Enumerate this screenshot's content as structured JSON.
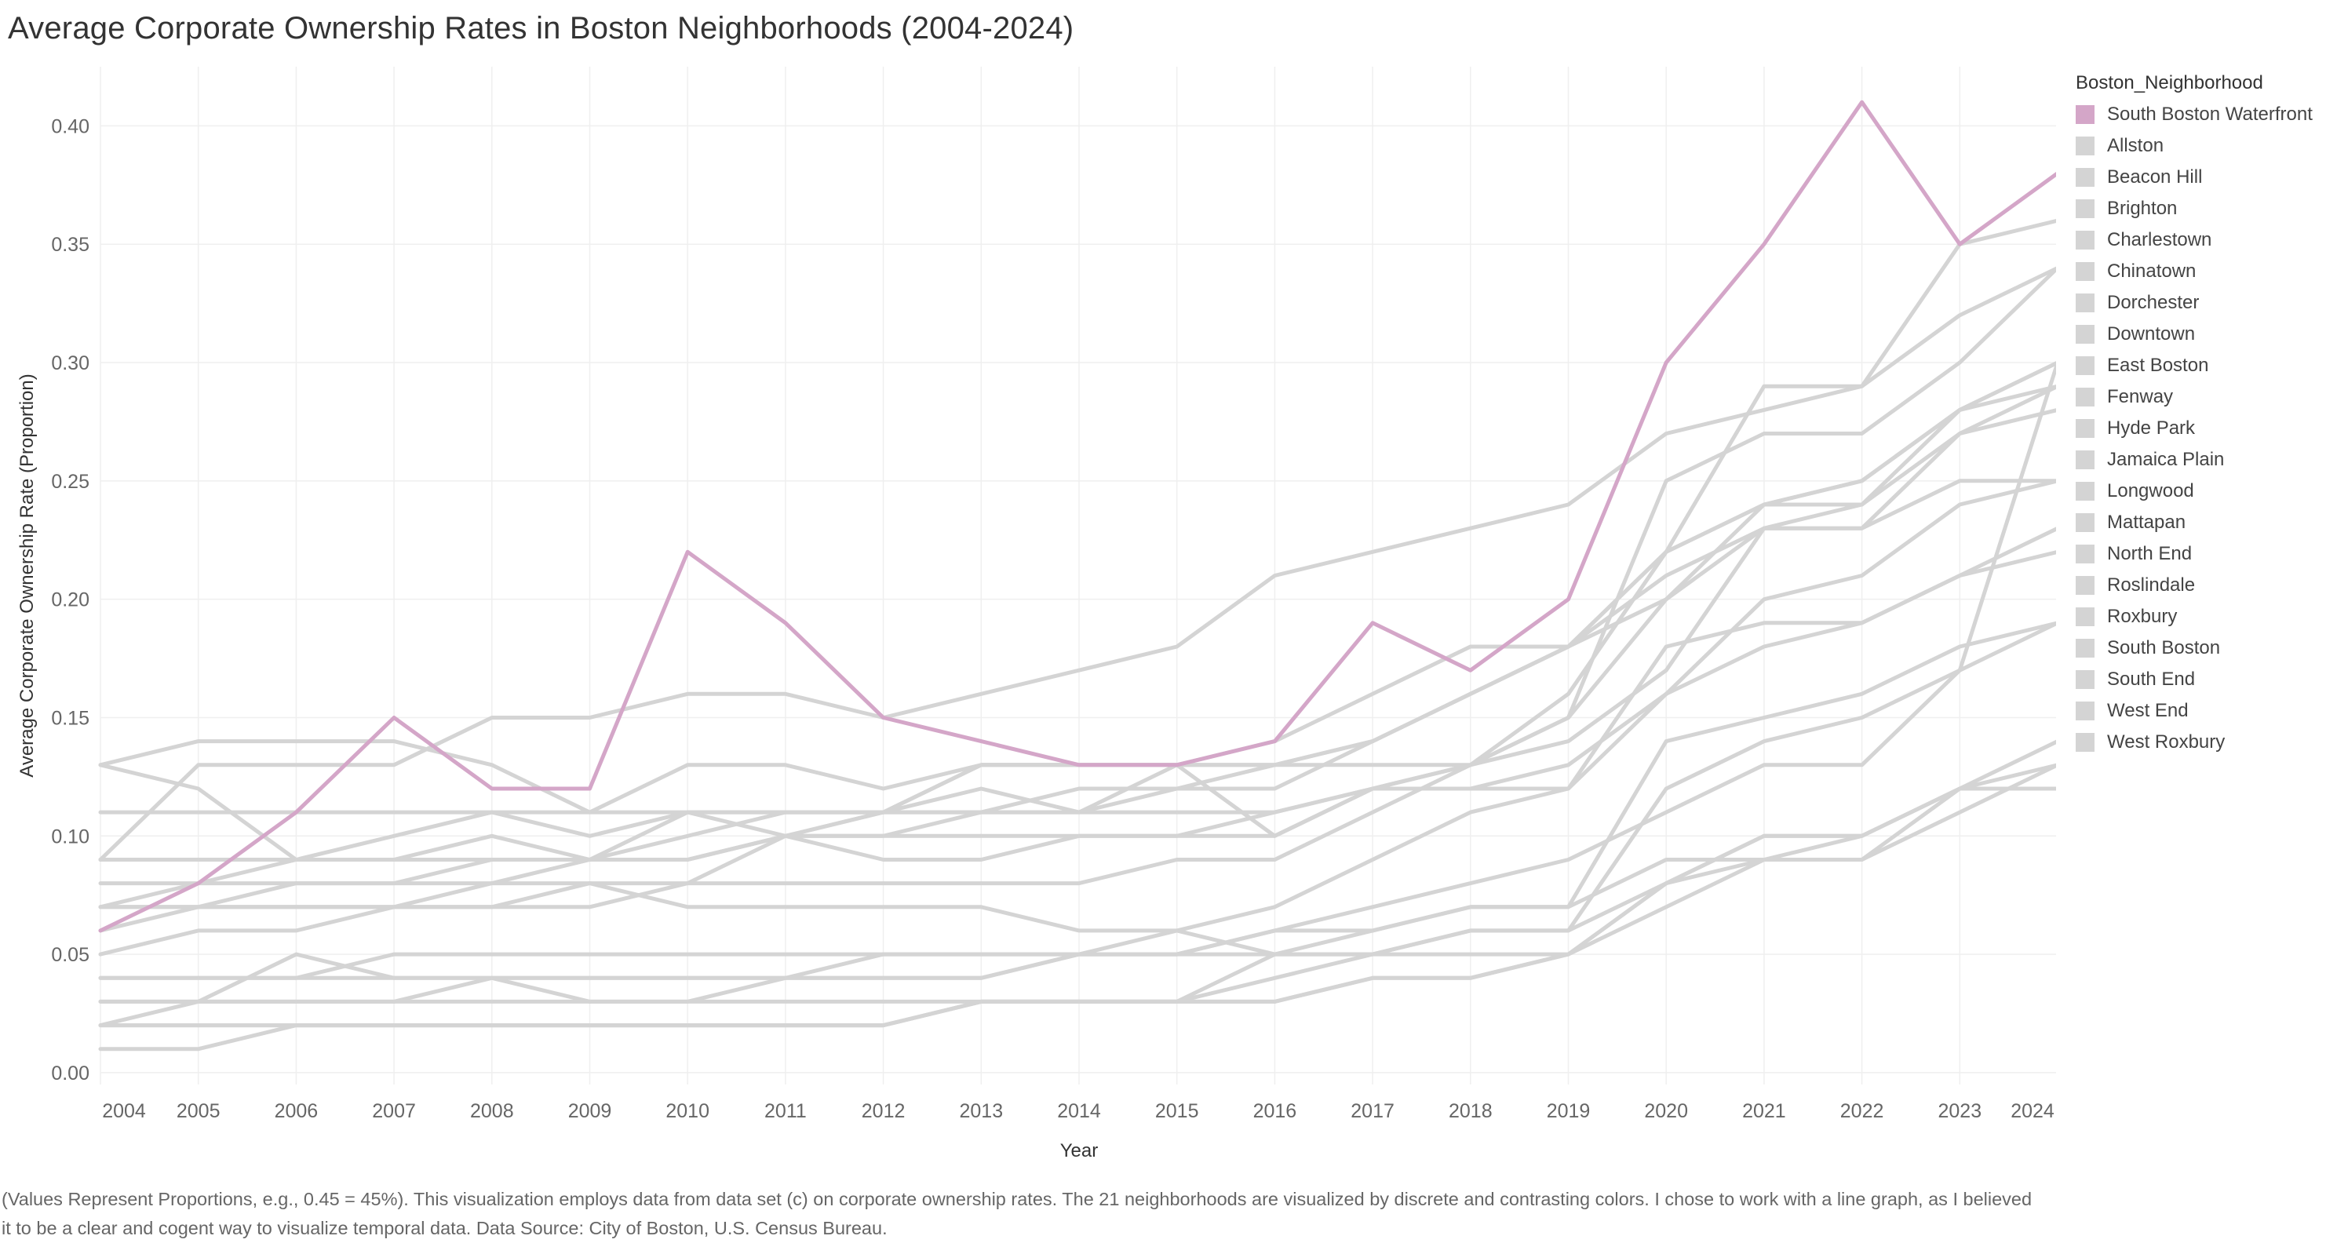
{
  "chart_data": {
    "type": "line",
    "title": "Average Corporate Ownership Rates in Boston Neighborhoods (2004-2024)",
    "xlabel": "Year",
    "ylabel": "Average Corporate Ownership Rate (Proportion)",
    "x": [
      "2004",
      "2005",
      "2006",
      "2007",
      "2008",
      "2009",
      "2010",
      "2011",
      "2012",
      "2013",
      "2014",
      "2015",
      "2016",
      "2017",
      "2018",
      "2019",
      "2020",
      "2021",
      "2022",
      "2023",
      "2024"
    ],
    "ylim": [
      -0.005,
      0.425
    ],
    "yticks": [
      "0.00",
      "0.05",
      "0.10",
      "0.15",
      "0.20",
      "0.25",
      "0.30",
      "0.35",
      "0.40"
    ],
    "grid": true,
    "legend_title": "Boston_Neighborhood",
    "legend_position": "right",
    "highlight_color": "#d4a6c8",
    "muted_color": "#d4d4d4",
    "series": [
      {
        "name": "South Boston Waterfront",
        "highlight": true,
        "values": [
          0.06,
          0.08,
          0.11,
          0.15,
          0.12,
          0.12,
          0.22,
          0.19,
          0.15,
          0.14,
          0.13,
          0.13,
          0.14,
          0.19,
          0.17,
          0.2,
          0.3,
          0.35,
          0.41,
          0.35,
          0.38
        ]
      },
      {
        "name": "Allston",
        "values": [
          0.13,
          0.12,
          0.09,
          0.09,
          0.09,
          0.09,
          0.09,
          0.1,
          0.11,
          0.13,
          0.13,
          0.13,
          0.1,
          0.12,
          0.13,
          0.14,
          0.17,
          0.23,
          0.24,
          0.28,
          0.3
        ]
      },
      {
        "name": "Beacon Hill",
        "values": [
          0.09,
          0.13,
          0.13,
          0.13,
          0.15,
          0.15,
          0.16,
          0.16,
          0.15,
          0.16,
          0.17,
          0.18,
          0.21,
          0.22,
          0.23,
          0.24,
          0.27,
          0.28,
          0.29,
          0.35,
          0.36
        ]
      },
      {
        "name": "Brighton",
        "values": [
          0.07,
          0.08,
          0.09,
          0.1,
          0.11,
          0.1,
          0.11,
          0.1,
          0.09,
          0.09,
          0.1,
          0.1,
          0.1,
          0.12,
          0.13,
          0.16,
          0.22,
          0.24,
          0.25,
          0.28,
          0.29
        ]
      },
      {
        "name": "Charlestown",
        "values": [
          0.13,
          0.14,
          0.14,
          0.14,
          0.13,
          0.11,
          0.13,
          0.13,
          0.12,
          0.13,
          0.13,
          0.13,
          0.13,
          0.14,
          0.16,
          0.18,
          0.21,
          0.23,
          0.23,
          0.27,
          0.28
        ]
      },
      {
        "name": "Chinatown",
        "values": [
          0.09,
          0.09,
          0.09,
          0.09,
          0.09,
          0.09,
          0.09,
          0.1,
          0.11,
          0.12,
          0.11,
          0.13,
          0.14,
          0.16,
          0.18,
          0.18,
          0.22,
          0.29,
          0.29,
          0.32,
          0.34
        ]
      },
      {
        "name": "Dorchester",
        "values": [
          0.04,
          0.04,
          0.04,
          0.05,
          0.05,
          0.05,
          0.05,
          0.05,
          0.05,
          0.05,
          0.05,
          0.05,
          0.06,
          0.06,
          0.07,
          0.07,
          0.09,
          0.09,
          0.09,
          0.12,
          0.14
        ]
      },
      {
        "name": "Downtown",
        "values": [
          0.08,
          0.08,
          0.08,
          0.08,
          0.08,
          0.08,
          0.08,
          0.08,
          0.08,
          0.08,
          0.08,
          0.09,
          0.09,
          0.11,
          0.13,
          0.15,
          0.25,
          0.27,
          0.27,
          0.3,
          0.34
        ]
      },
      {
        "name": "East Boston",
        "values": [
          0.04,
          0.04,
          0.04,
          0.04,
          0.04,
          0.04,
          0.04,
          0.04,
          0.04,
          0.04,
          0.05,
          0.06,
          0.07,
          0.09,
          0.11,
          0.12,
          0.16,
          0.18,
          0.19,
          0.21,
          0.22
        ]
      },
      {
        "name": "Fenway",
        "values": [
          0.06,
          0.07,
          0.08,
          0.08,
          0.09,
          0.09,
          0.1,
          0.11,
          0.11,
          0.11,
          0.11,
          0.12,
          0.12,
          0.14,
          0.16,
          0.18,
          0.2,
          0.24,
          0.25,
          0.28,
          0.3
        ]
      },
      {
        "name": "Hyde Park",
        "values": [
          0.03,
          0.03,
          0.03,
          0.03,
          0.03,
          0.03,
          0.03,
          0.03,
          0.03,
          0.03,
          0.03,
          0.03,
          0.03,
          0.04,
          0.04,
          0.05,
          0.08,
          0.1,
          0.1,
          0.12,
          0.13
        ]
      },
      {
        "name": "Jamaica Plain",
        "values": [
          0.05,
          0.06,
          0.06,
          0.07,
          0.08,
          0.09,
          0.09,
          0.1,
          0.1,
          0.11,
          0.12,
          0.12,
          0.13,
          0.14,
          0.16,
          0.18,
          0.22,
          0.24,
          0.24,
          0.27,
          0.29
        ]
      },
      {
        "name": "Longwood",
        "values": [
          0.07,
          0.07,
          0.07,
          0.07,
          0.07,
          0.08,
          0.07,
          0.07,
          0.07,
          0.07,
          0.06,
          0.06,
          0.05,
          0.06,
          0.07,
          0.07,
          0.14,
          0.15,
          0.16,
          0.18,
          0.19
        ]
      },
      {
        "name": "Mattapan",
        "values": [
          0.02,
          0.02,
          0.02,
          0.02,
          0.02,
          0.02,
          0.02,
          0.02,
          0.02,
          0.03,
          0.03,
          0.03,
          0.03,
          0.04,
          0.04,
          0.05,
          0.07,
          0.09,
          0.09,
          0.11,
          0.13
        ]
      },
      {
        "name": "North End",
        "values": [
          0.11,
          0.11,
          0.11,
          0.11,
          0.11,
          0.11,
          0.11,
          0.11,
          0.11,
          0.11,
          0.11,
          0.11,
          0.11,
          0.12,
          0.12,
          0.13,
          0.16,
          0.2,
          0.21,
          0.24,
          0.25
        ]
      },
      {
        "name": "Roslindale",
        "values": [
          0.02,
          0.03,
          0.05,
          0.04,
          0.04,
          0.03,
          0.03,
          0.04,
          0.04,
          0.04,
          0.05,
          0.05,
          0.05,
          0.05,
          0.05,
          0.05,
          0.08,
          0.09,
          0.1,
          0.12,
          0.12
        ]
      },
      {
        "name": "Roxbury",
        "values": [
          0.03,
          0.03,
          0.03,
          0.03,
          0.04,
          0.04,
          0.04,
          0.04,
          0.05,
          0.05,
          0.05,
          0.05,
          0.06,
          0.07,
          0.08,
          0.09,
          0.11,
          0.13,
          0.13,
          0.17,
          0.3
        ]
      },
      {
        "name": "South Boston",
        "values": [
          0.09,
          0.09,
          0.09,
          0.09,
          0.1,
          0.09,
          0.11,
          0.11,
          0.11,
          0.13,
          0.13,
          0.13,
          0.13,
          0.13,
          0.13,
          0.15,
          0.2,
          0.23,
          0.23,
          0.25,
          0.25
        ]
      },
      {
        "name": "South End",
        "values": [
          0.07,
          0.07,
          0.07,
          0.07,
          0.07,
          0.07,
          0.08,
          0.1,
          0.1,
          0.1,
          0.1,
          0.1,
          0.11,
          0.12,
          0.12,
          0.12,
          0.18,
          0.19,
          0.19,
          0.21,
          0.23
        ]
      },
      {
        "name": "West End",
        "values": [
          0.02,
          0.02,
          0.02,
          0.02,
          0.02,
          0.02,
          0.02,
          0.02,
          0.02,
          0.03,
          0.03,
          0.03,
          0.05,
          0.05,
          0.06,
          0.06,
          0.08,
          0.1,
          0.1,
          0.12,
          0.12
        ]
      },
      {
        "name": "West Roxbury",
        "values": [
          0.01,
          0.01,
          0.02,
          0.02,
          0.02,
          0.02,
          0.02,
          0.02,
          0.02,
          0.03,
          0.03,
          0.03,
          0.04,
          0.05,
          0.06,
          0.06,
          0.12,
          0.14,
          0.15,
          0.17,
          0.19
        ]
      }
    ]
  },
  "footnote": "(Values Represent Proportions, e.g., 0.45 = 45%). This visualization employs data from data set (c) on corporate ownership rates. The 21 neighborhoods are visualized by discrete and contrasting colors. I chose to work with a line graph, as I believed it to be a clear and cogent way to visualize temporal data. Data Source: City of Boston, U.S. Census Bureau."
}
